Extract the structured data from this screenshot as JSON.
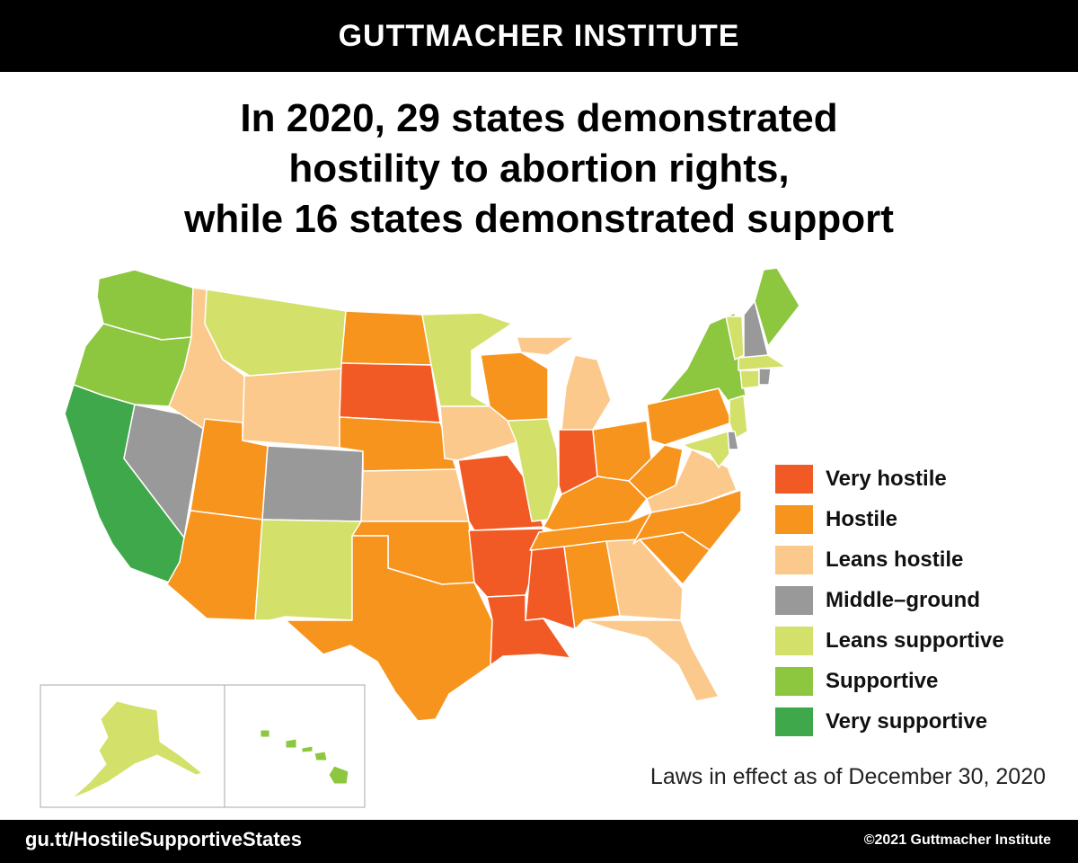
{
  "header": {
    "org_name": "GUTTMACHER INSTITUTE"
  },
  "headline": {
    "line1": "In 2020, 29 states demonstrated",
    "line2": "hostility to abortion rights,",
    "line3": "while 16 states demonstrated support"
  },
  "colors": {
    "very_hostile": "#f15a24",
    "hostile": "#f7941d",
    "leans_hostile": "#fcc98c",
    "middle_ground": "#999999",
    "leans_supportive": "#d3e06a",
    "supportive": "#8dc63f",
    "very_supportive": "#3fa84a"
  },
  "legend": [
    {
      "key": "very_hostile",
      "label": "Very hostile",
      "color": "#f15a24"
    },
    {
      "key": "hostile",
      "label": "Hostile",
      "color": "#f7941d"
    },
    {
      "key": "leans_hostile",
      "label": "Leans hostile",
      "color": "#fcc98c"
    },
    {
      "key": "middle_ground",
      "label": "Middle–ground",
      "color": "#999999"
    },
    {
      "key": "leans_supportive",
      "label": "Leans supportive",
      "color": "#d3e06a"
    },
    {
      "key": "supportive",
      "label": "Supportive",
      "color": "#8dc63f"
    },
    {
      "key": "very_supportive",
      "label": "Very supportive",
      "color": "#3fa84a"
    }
  ],
  "states": {
    "WA": "supportive",
    "OR": "supportive",
    "CA": "very_supportive",
    "NV": "middle_ground",
    "ID": "leans_hostile",
    "MT": "leans_supportive",
    "WY": "leans_hostile",
    "UT": "hostile",
    "AZ": "hostile",
    "CO": "middle_ground",
    "NM": "leans_supportive",
    "ND": "hostile",
    "SD": "very_hostile",
    "NE": "hostile",
    "KS": "leans_hostile",
    "OK": "hostile",
    "TX": "hostile",
    "MN": "leans_supportive",
    "IA": "leans_hostile",
    "MO": "very_hostile",
    "AR": "very_hostile",
    "LA": "very_hostile",
    "WI": "hostile",
    "IL": "leans_supportive",
    "MI": "leans_hostile",
    "IN": "very_hostile",
    "OH": "hostile",
    "KY": "hostile",
    "TN": "hostile",
    "MS": "very_hostile",
    "AL": "hostile",
    "GA": "leans_hostile",
    "FL": "leans_hostile",
    "SC": "hostile",
    "NC": "hostile",
    "VA": "leans_hostile",
    "WV": "hostile",
    "PA": "hostile",
    "NY": "supportive",
    "VT": "leans_supportive",
    "NH": "middle_ground",
    "ME": "supportive",
    "MA": "leans_supportive",
    "RI": "middle_ground",
    "CT": "leans_supportive",
    "NJ": "leans_supportive",
    "DE": "middle_ground",
    "MD": "leans_supportive",
    "AK": "leans_supportive",
    "HI": "supportive"
  },
  "note": "Laws in effect as of December 30, 2020",
  "footer": {
    "url": "gu.tt/HostileSupportiveStates",
    "copyright": "©2021 Guttmacher Institute"
  }
}
